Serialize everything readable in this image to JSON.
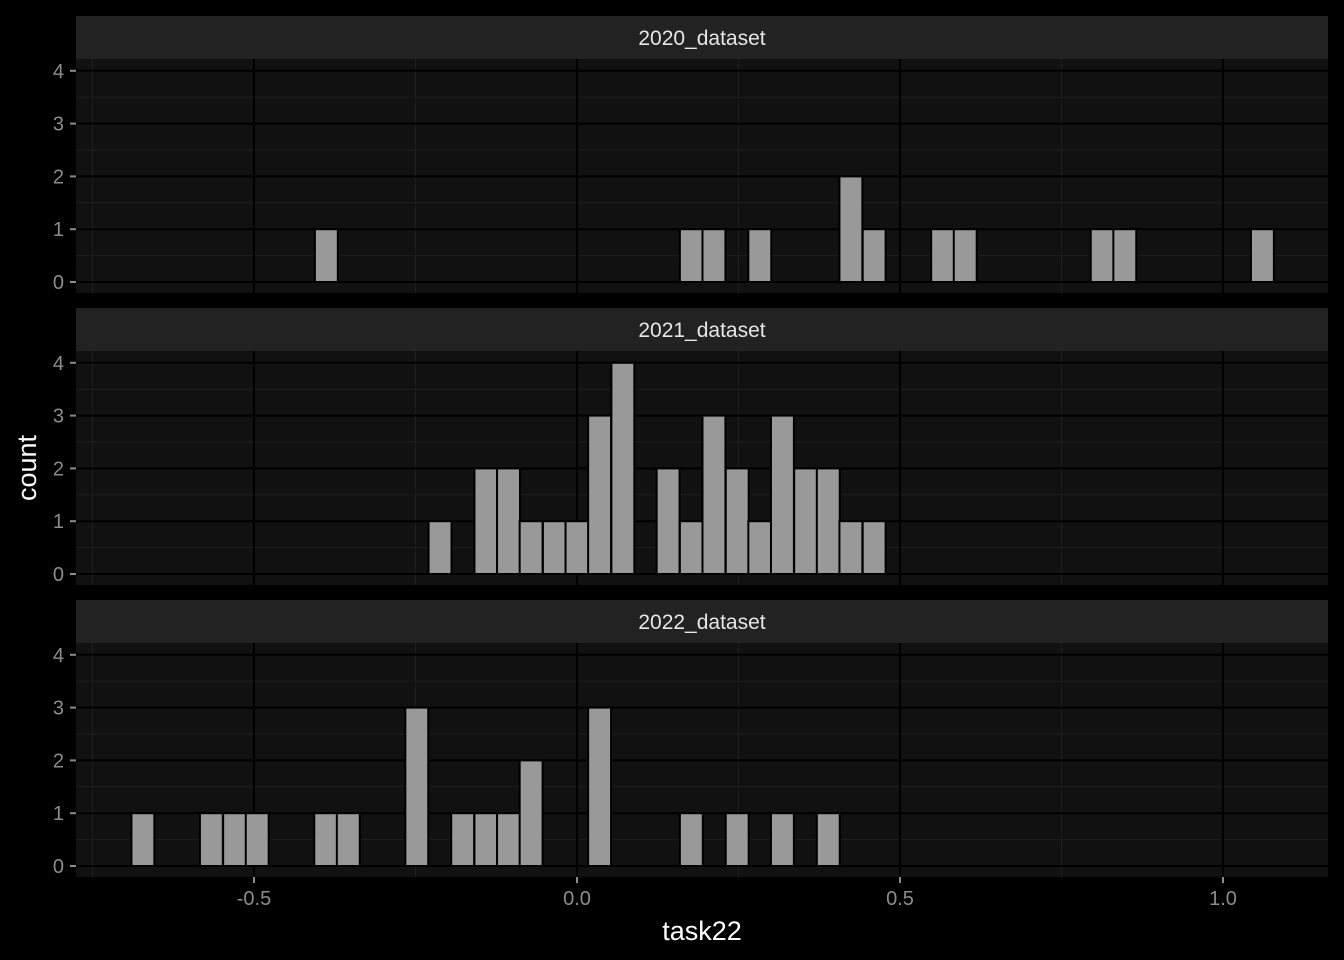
{
  "chart_data": {
    "type": "bar",
    "subtype": "faceted-histogram",
    "xlabel": "task22",
    "ylabel": "count",
    "xlim": [
      -0.75,
      1.15
    ],
    "ylim": [
      0,
      4
    ],
    "x_ticks": [
      -0.5,
      0.0,
      0.5,
      1.0
    ],
    "x_tick_labels": [
      "-0.5",
      "0.0",
      "0.5",
      "1.0"
    ],
    "y_ticks": [
      0,
      1,
      2,
      3,
      4
    ],
    "y_tick_labels": [
      "0",
      "1",
      "2",
      "3",
      "4"
    ],
    "bin_width": 0.0355,
    "grid": true,
    "colors": {
      "background": "#000000",
      "panel": "#111111",
      "strip": "#222222",
      "bar_fill": "#999999",
      "bar_outline": "#000000",
      "grid_major": "#000000",
      "grid_minor": "#1f1f1f"
    },
    "facets": [
      {
        "label": "2020_dataset",
        "bars": [
          {
            "x": -0.388,
            "count": 1
          },
          {
            "x": 0.177,
            "count": 1
          },
          {
            "x": 0.212,
            "count": 1
          },
          {
            "x": 0.283,
            "count": 1
          },
          {
            "x": 0.424,
            "count": 2
          },
          {
            "x": 0.46,
            "count": 1
          },
          {
            "x": 0.566,
            "count": 1
          },
          {
            "x": 0.601,
            "count": 1
          },
          {
            "x": 0.813,
            "count": 1
          },
          {
            "x": 0.848,
            "count": 1
          },
          {
            "x": 1.061,
            "count": 1
          }
        ]
      },
      {
        "label": "2021_dataset",
        "bars": [
          {
            "x": -0.212,
            "count": 1
          },
          {
            "x": -0.141,
            "count": 2
          },
          {
            "x": -0.106,
            "count": 2
          },
          {
            "x": -0.071,
            "count": 1
          },
          {
            "x": -0.035,
            "count": 1
          },
          {
            "x": 0.0,
            "count": 1
          },
          {
            "x": 0.035,
            "count": 3
          },
          {
            "x": 0.071,
            "count": 4
          },
          {
            "x": 0.141,
            "count": 2
          },
          {
            "x": 0.177,
            "count": 1
          },
          {
            "x": 0.212,
            "count": 3
          },
          {
            "x": 0.248,
            "count": 2
          },
          {
            "x": 0.283,
            "count": 1
          },
          {
            "x": 0.318,
            "count": 3
          },
          {
            "x": 0.354,
            "count": 2
          },
          {
            "x": 0.389,
            "count": 2
          },
          {
            "x": 0.424,
            "count": 1
          },
          {
            "x": 0.46,
            "count": 1
          }
        ]
      },
      {
        "label": "2022_dataset",
        "bars": [
          {
            "x": -0.672,
            "count": 1
          },
          {
            "x": -0.566,
            "count": 1
          },
          {
            "x": -0.53,
            "count": 1
          },
          {
            "x": -0.495,
            "count": 1
          },
          {
            "x": -0.389,
            "count": 1
          },
          {
            "x": -0.354,
            "count": 1
          },
          {
            "x": -0.248,
            "count": 3
          },
          {
            "x": -0.177,
            "count": 1
          },
          {
            "x": -0.141,
            "count": 1
          },
          {
            "x": -0.106,
            "count": 1
          },
          {
            "x": -0.071,
            "count": 2
          },
          {
            "x": 0.035,
            "count": 3
          },
          {
            "x": 0.177,
            "count": 1
          },
          {
            "x": 0.248,
            "count": 1
          },
          {
            "x": 0.318,
            "count": 1
          },
          {
            "x": 0.389,
            "count": 1
          }
        ]
      }
    ]
  }
}
